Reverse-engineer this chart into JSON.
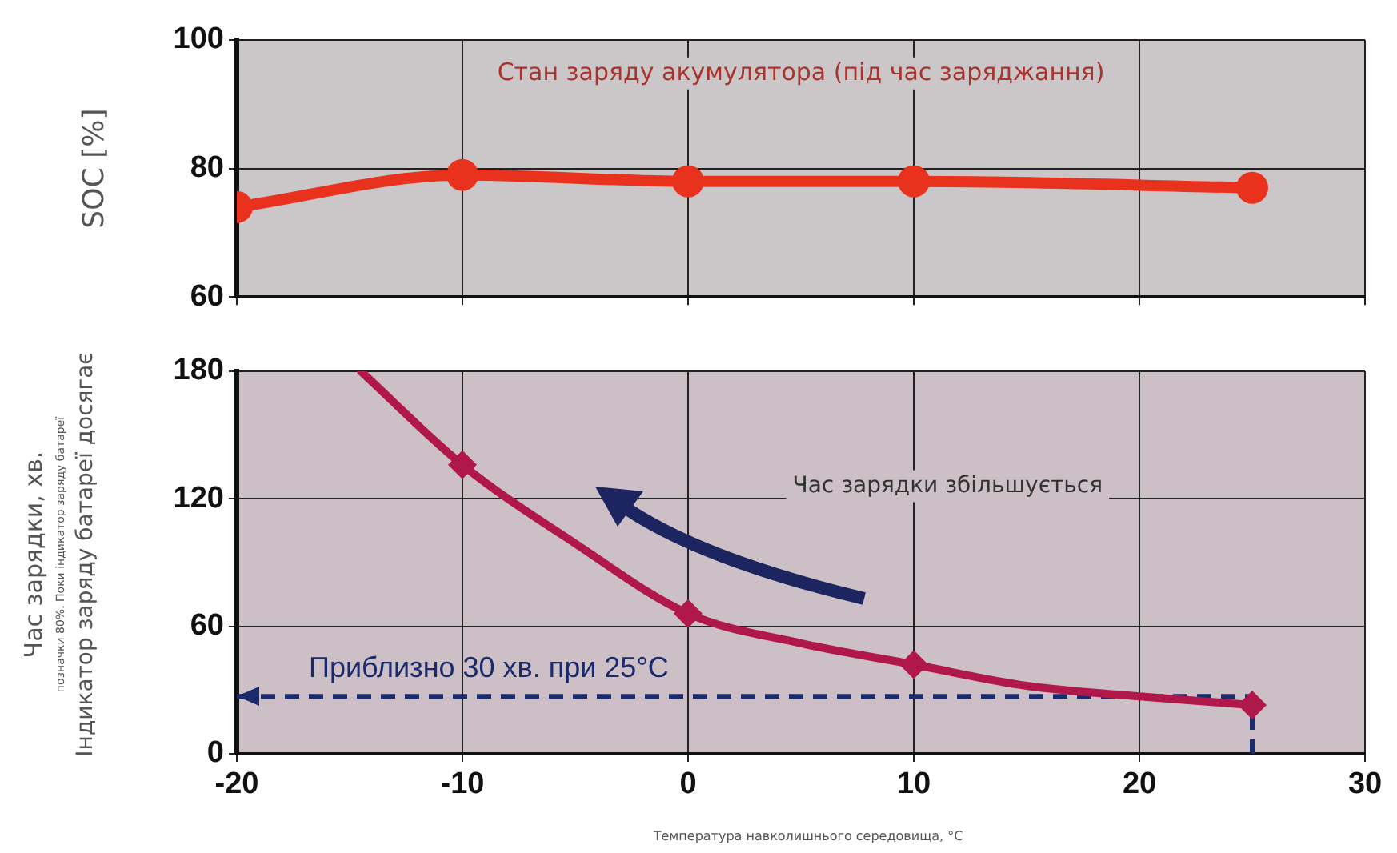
{
  "chart_data": [
    {
      "type": "line",
      "ylabel": "SOC [%]",
      "annotations": [
        "Стан заряду акумулятора (під час заряджання)"
      ],
      "x": [
        -20,
        -10,
        0,
        10,
        25
      ],
      "series": [
        {
          "color": "#e8321e",
          "values": [
            74,
            79,
            78,
            78,
            77
          ]
        }
      ],
      "xlim": [
        -20,
        30
      ],
      "xticks": [
        -20,
        -10,
        0,
        10,
        20,
        30
      ],
      "ylim": [
        60,
        100
      ],
      "yticks": [
        60,
        80,
        100
      ],
      "grid": true,
      "marker": "circle",
      "tick_labels": "y"
    },
    {
      "type": "line",
      "ylabel": "Час зарядки, хв.\nпозначки 80%. Поки індикатор заряду батареї\nІндикатор заряду батареї досягає",
      "xlabel": "Температура навколишнього середовища, °C",
      "annotations": [
        "Час зарядки збільшується"
      ],
      "series": [
        {
          "type": "line",
          "color": "#b0184c",
          "x": [
            -14.5,
            -10,
            -5,
            0,
            5,
            10,
            15,
            20,
            25
          ],
          "values": [
            180,
            136,
            99,
            66,
            52,
            42,
            32,
            27,
            23
          ],
          "marker": "none"
        },
        {
          "type": "scatter",
          "color": "#b0184c",
          "x": [
            -10,
            0,
            10,
            25
          ],
          "values": [
            136,
            66,
            42,
            23
          ],
          "marker": "diamond"
        }
      ],
      "ref_lines": [
        {
          "axis": "y",
          "value": 27,
          "label": "Приблизно 30 хв. при 25°C",
          "color": "#1a2a6c",
          "line_style": "dashed"
        },
        {
          "axis": "x",
          "value": 25,
          "color": "#1a2a6c",
          "line_style": "dashed"
        }
      ],
      "xlim": [
        -20,
        30
      ],
      "xticks": [
        -20,
        -10,
        0,
        10,
        20,
        30
      ],
      "ylim": [
        0,
        180
      ],
      "yticks": [
        0,
        60,
        120,
        180
      ],
      "grid": true
    }
  ]
}
